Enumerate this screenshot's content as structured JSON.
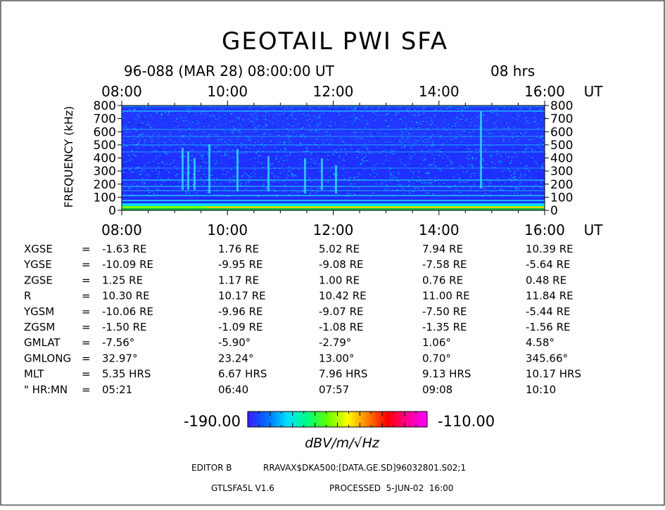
{
  "title": "GEOTAIL PWI SFA",
  "header": {
    "date_line": "96-088 (MAR 28) 08:00:00 UT",
    "duration": "08 hrs"
  },
  "chart_data": {
    "type": "heatmap",
    "ylabel": "FREQUENCY (kHz)",
    "x_unit": "UT",
    "x_ticks": [
      "08:00",
      "10:00",
      "12:00",
      "14:00",
      "16:00"
    ],
    "xlim": [
      "08:00",
      "16:00"
    ],
    "y_ticks": [
      0,
      100,
      200,
      300,
      400,
      500,
      600,
      700,
      800
    ],
    "ylim": [
      0,
      800
    ],
    "color_scale": {
      "min": "-190.00",
      "max": "-110.00",
      "unit": "dBV/m/√Hz",
      "colors": [
        "#3a1cff",
        "#0070ff",
        "#00e0ff",
        "#00ff80",
        "#60ff00",
        "#ffff00",
        "#ff8000",
        "#ff0000",
        "#ff0090",
        "#ff00ff"
      ]
    }
  },
  "orbit": {
    "rows": [
      {
        "label": "XGSE",
        "values": [
          "-1.63 RE",
          "1.76 RE",
          "5.02 RE",
          "7.94 RE",
          "10.39 RE"
        ]
      },
      {
        "label": "YGSE",
        "values": [
          "-10.09 RE",
          "-9.95 RE",
          "-9.08 RE",
          "-7.58 RE",
          "-5.64 RE"
        ]
      },
      {
        "label": "ZGSE",
        "values": [
          "1.25 RE",
          "1.17 RE",
          "1.00 RE",
          "0.76 RE",
          "0.48 RE"
        ]
      },
      {
        "label": "R",
        "values": [
          "10.30 RE",
          "10.17 RE",
          "10.42 RE",
          "11.00 RE",
          "11.84 RE"
        ]
      },
      {
        "label": "YGSM",
        "values": [
          "-10.06 RE",
          "-9.96 RE",
          "-9.07 RE",
          "-7.50 RE",
          "-5.44 RE"
        ]
      },
      {
        "label": "ZGSM",
        "values": [
          "-1.50 RE",
          "-1.09 RE",
          "-1.08 RE",
          "-1.35 RE",
          "-1.56 RE"
        ]
      },
      {
        "label": "GMLAT",
        "values": [
          "-7.56°",
          "-5.90°",
          "-2.79°",
          "1.06°",
          "4.58°"
        ]
      },
      {
        "label": "GMLONG",
        "values": [
          "32.97°",
          "23.24°",
          "13.00°",
          "0.70°",
          "345.66°"
        ]
      },
      {
        "label": "MLT",
        "values": [
          "5.35 HRS",
          "6.67 HRS",
          "7.96 HRS",
          "9.13 HRS",
          "10.17 HRS"
        ]
      },
      {
        "label": "\" HR:MN",
        "values": [
          "05:21",
          "06:40",
          "07:57",
          "09:08",
          "10:10"
        ]
      }
    ]
  },
  "footer": {
    "editor": "EDITOR B",
    "path": "RRAVAX$DKA500:[DATA.GE.SD]96032801.S02;1",
    "program": "GTLSFA5L V1.6",
    "processed": "PROCESSED  5-JUN-02  16:00"
  }
}
